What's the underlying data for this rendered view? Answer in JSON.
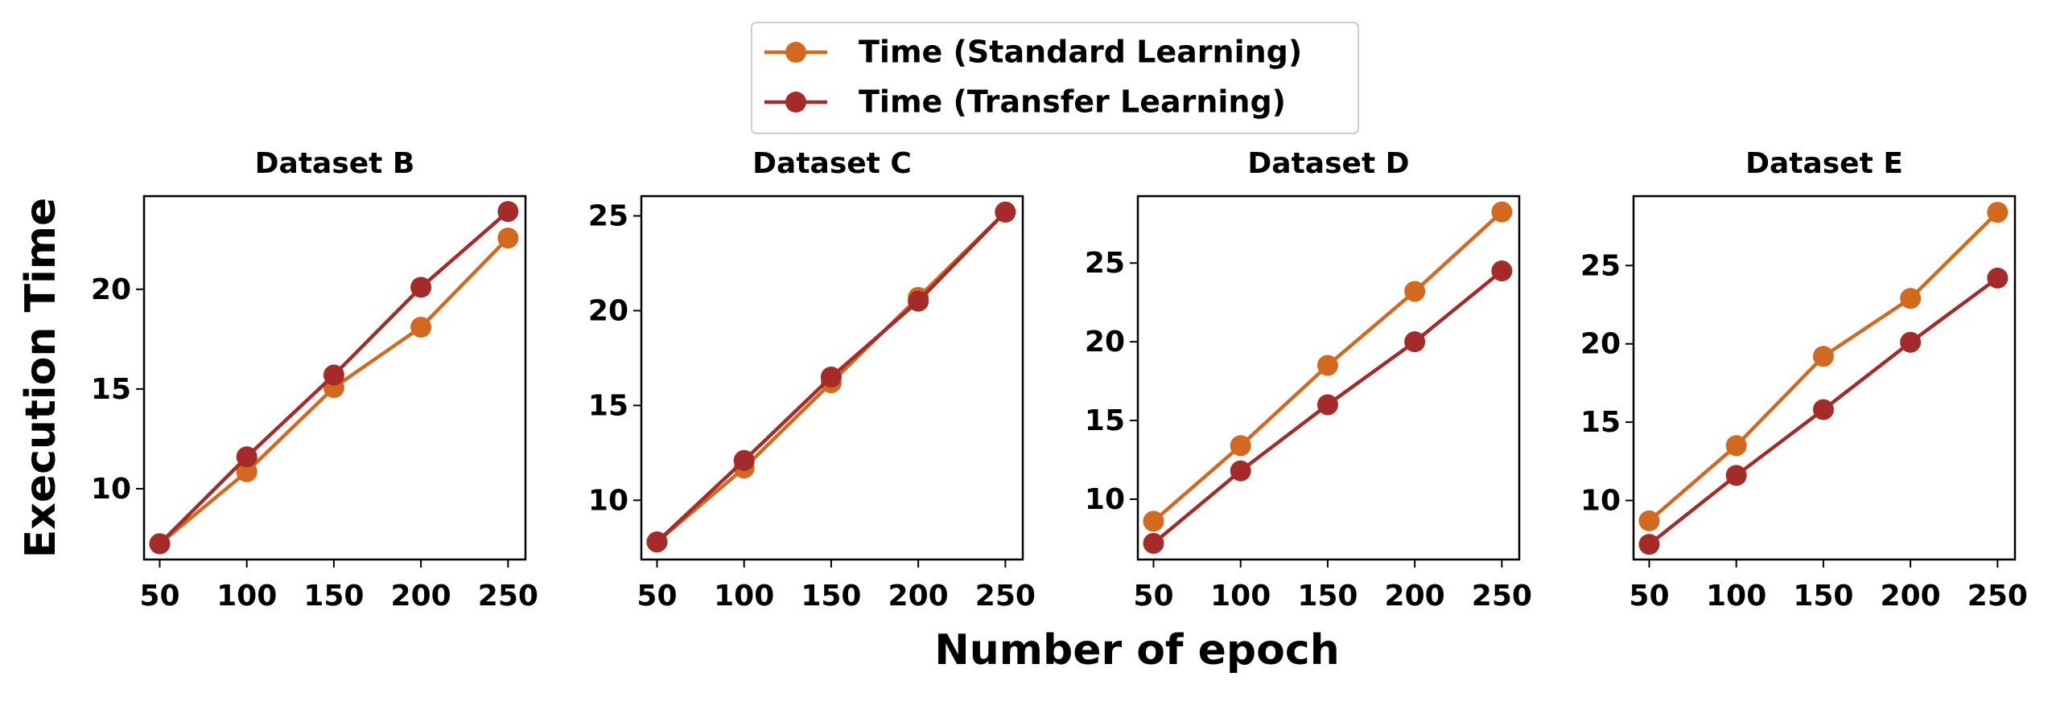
{
  "chart_data": [
    {
      "type": "line",
      "title": "Dataset B",
      "y_label": "Execution Time",
      "x_label": "Number of epoch",
      "x": [
        50,
        100,
        150,
        200,
        250
      ],
      "series": [
        {
          "name": "Time (Standard Learning)",
          "color": "#d2691e",
          "values": [
            7.24,
            10.85,
            15.07,
            18.1,
            22.57
          ]
        },
        {
          "name": "Time (Transfer Learning)",
          "color": "#a52a2a",
          "values": [
            7.24,
            11.6,
            15.7,
            20.1,
            23.9
          ]
        }
      ],
      "xlim": [
        41,
        260
      ],
      "xticks": [
        50,
        100,
        150,
        200,
        250
      ],
      "ylim": [
        6.45,
        24.67
      ],
      "yticks": [
        10,
        15,
        20
      ]
    },
    {
      "type": "line",
      "title": "Dataset C",
      "x": [
        50,
        100,
        150,
        200,
        250
      ],
      "series": [
        {
          "name": "Time (Standard Learning)",
          "color": "#d2691e",
          "values": [
            7.8,
            11.7,
            16.2,
            20.7,
            25.2
          ]
        },
        {
          "name": "Time (Transfer Learning)",
          "color": "#a52a2a",
          "values": [
            7.8,
            12.1,
            16.5,
            20.5,
            25.2
          ]
        }
      ],
      "xlim": [
        41,
        260
      ],
      "xticks": [
        50,
        100,
        150,
        200,
        250
      ],
      "ylim": [
        6.875,
        26.04
      ],
      "yticks": [
        10,
        15,
        20,
        25
      ]
    },
    {
      "type": "line",
      "title": "Dataset D",
      "x": [
        50,
        100,
        150,
        200,
        250
      ],
      "series": [
        {
          "name": "Time (Standard Learning)",
          "color": "#d2691e",
          "values": [
            8.6,
            13.4,
            18.5,
            23.2,
            28.25
          ]
        },
        {
          "name": "Time (Transfer Learning)",
          "color": "#a52a2a",
          "values": [
            7.2,
            11.8,
            16.0,
            20.0,
            24.5
          ]
        }
      ],
      "xlim": [
        41,
        260
      ],
      "xticks": [
        50,
        100,
        150,
        200,
        250
      ],
      "ylim": [
        6.17,
        29.25
      ],
      "yticks": [
        10,
        15,
        20,
        25
      ]
    },
    {
      "type": "line",
      "title": "Dataset E",
      "x": [
        50,
        100,
        150,
        200,
        250
      ],
      "series": [
        {
          "name": "Time (Standard Learning)",
          "color": "#d2691e",
          "values": [
            8.7,
            13.5,
            19.2,
            22.9,
            28.4
          ]
        },
        {
          "name": "Time (Transfer Learning)",
          "color": "#a52a2a",
          "values": [
            7.2,
            11.6,
            15.8,
            20.1,
            24.2
          ]
        }
      ],
      "xlim": [
        41,
        260
      ],
      "xticks": [
        50,
        100,
        150,
        200,
        250
      ],
      "ylim": [
        6.23,
        29.43
      ],
      "yticks": [
        10,
        15,
        20,
        25
      ]
    }
  ]
}
